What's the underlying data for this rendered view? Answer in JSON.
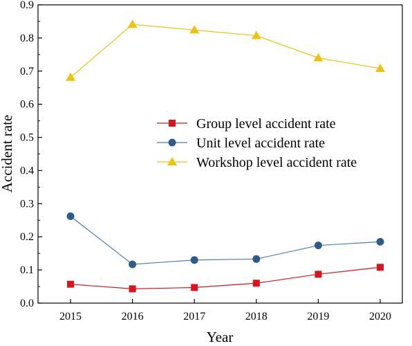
{
  "chart_data": {
    "type": "line",
    "title": "",
    "xlabel": "Year",
    "ylabel": "Accident rate",
    "x": [
      "2015",
      "2016",
      "2017",
      "2018",
      "2019",
      "2020"
    ],
    "ylim": [
      0,
      0.9
    ],
    "yticks": [
      "0.0",
      "0.1",
      "0.2",
      "0.3",
      "0.4",
      "0.5",
      "0.6",
      "0.7",
      "0.8",
      "0.9"
    ],
    "grid": false,
    "legend_position": "center-right",
    "series": [
      {
        "name": "Group level accident rate",
        "marker": "square",
        "color": "#d9141b",
        "values": [
          0.057,
          0.043,
          0.047,
          0.06,
          0.087,
          0.108
        ]
      },
      {
        "name": "Unit level accident rate",
        "marker": "circle",
        "color": "#2e5b8a",
        "line_color": "#4a7db5",
        "values": [
          0.262,
          0.117,
          0.13,
          0.133,
          0.174,
          0.185
        ]
      },
      {
        "name": "Workshop level accident rate",
        "marker": "triangle",
        "color": "#f0c20c",
        "values": [
          0.681,
          0.841,
          0.824,
          0.807,
          0.74,
          0.708
        ]
      }
    ]
  }
}
